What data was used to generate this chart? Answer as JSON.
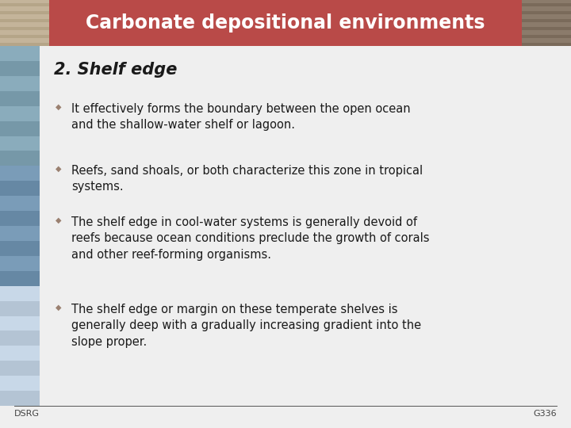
{
  "title": "Carbonate depositional environments",
  "title_bg_color": "#B94A48",
  "title_text_color": "#FFFFFF",
  "slide_bg_color": "#EFEFEF",
  "subtitle": "2. Shelf edge",
  "bullets": [
    "It effectively forms the boundary between the open ocean\nand the shallow-water shelf or lagoon.",
    "Reefs, sand shoals, or both characterize this zone in tropical\nsystems.",
    "The shelf edge in cool-water systems is generally devoid of\nreefs because ocean conditions preclude the growth of corals\nand other reef-forming organisms.",
    "The shelf edge or margin on these temperate shelves is\ngenerally deep with a gradually increasing gradient into the\nslope proper."
  ],
  "bullet_symbol": "v",
  "footer_left": "DSRG",
  "footer_right": "G336",
  "footer_line_color": "#555555",
  "text_color": "#1a1a1a",
  "left_stripe_top_color": "#8B9BB0",
  "left_stripe_mid_color": "#6B8BA8",
  "left_stripe_bot_color": "#5B7A9A",
  "title_fontsize": 17,
  "subtitle_fontsize": 15,
  "bullet_fontsize": 10.5,
  "footer_fontsize": 8
}
